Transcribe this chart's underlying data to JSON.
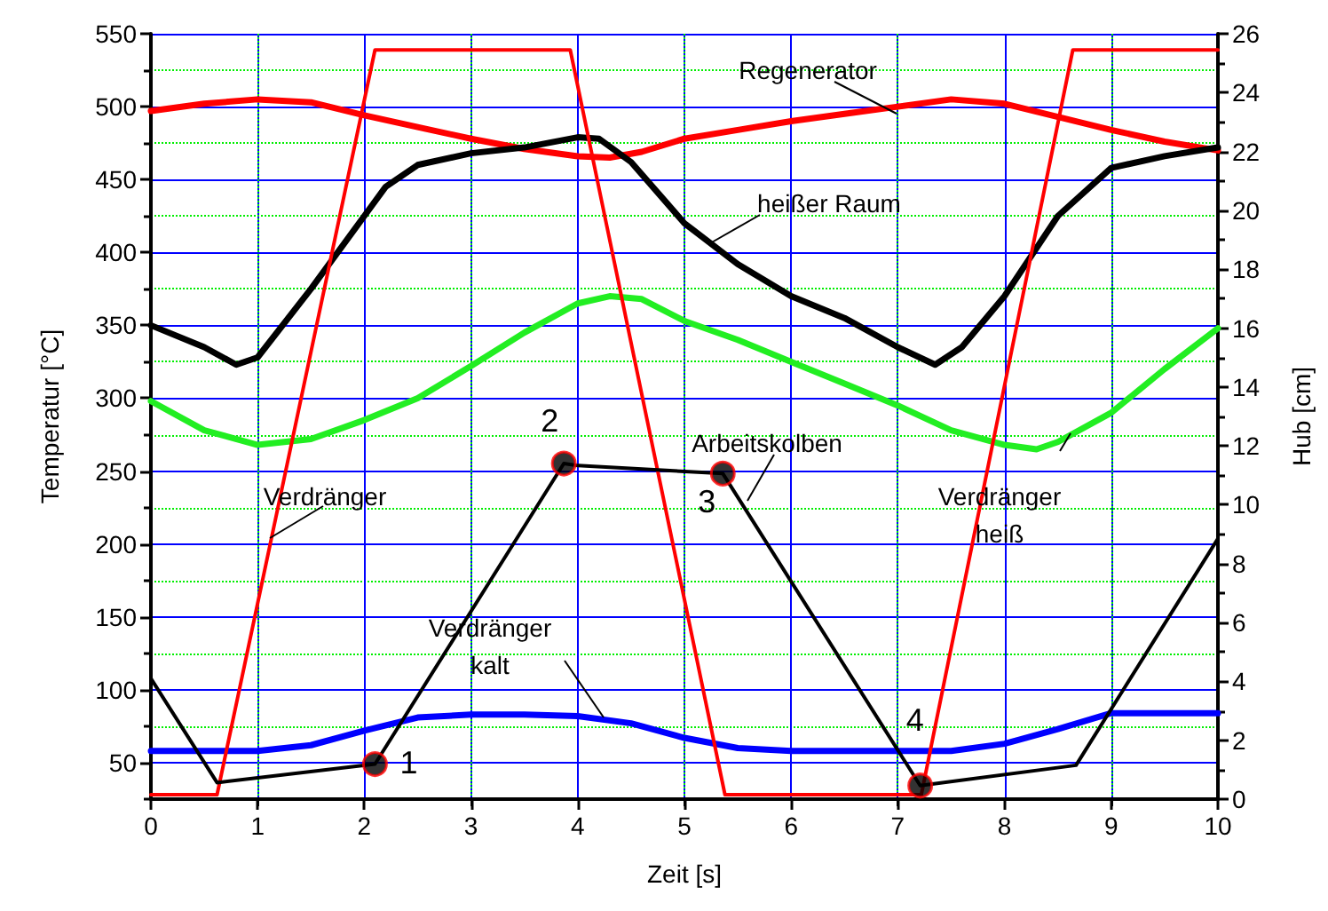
{
  "chart_data": {
    "type": "line",
    "xlabel": "Zeit [s]",
    "ylabel": "Temperatur [°C]",
    "y2label": "Hub [cm]",
    "xlim": [
      0,
      10
    ],
    "xticks": [
      0,
      1,
      2,
      3,
      4,
      5,
      6,
      7,
      8,
      9,
      10
    ],
    "ylim": [
      25,
      550
    ],
    "yticks": [
      50,
      100,
      150,
      200,
      250,
      300,
      350,
      400,
      450,
      500,
      550
    ],
    "y2lim": [
      0,
      26
    ],
    "y2ticks": [
      0,
      2,
      4,
      6,
      8,
      10,
      12,
      14,
      16,
      18,
      20,
      22,
      24,
      26
    ],
    "annotations": [
      "1",
      "2",
      "3",
      "4"
    ],
    "grid": true,
    "legend": false,
    "marker": "none",
    "line_style": "solid",
    "series": [
      {
        "name": "Regenerator",
        "color": "#ff0000",
        "x": [
          0,
          0.5,
          1,
          1.5,
          2,
          2.5,
          3,
          3.5,
          4,
          4.3,
          4.6,
          5,
          5.5,
          6,
          6.5,
          7,
          7.5,
          8,
          8.5,
          9,
          9.5,
          10
        ],
        "values": [
          497,
          502,
          505,
          503,
          494,
          486,
          478,
          471,
          466,
          465,
          469,
          478,
          484,
          490,
          495,
          500,
          505,
          502,
          493,
          484,
          476,
          470
        ]
      },
      {
        "name": "heißer Raum",
        "color": "#000000",
        "x": [
          0,
          0.5,
          0.8,
          1,
          1.5,
          2,
          2.2,
          2.5,
          3,
          3.5,
          4,
          4.2,
          4.5,
          5,
          5.5,
          6,
          6.5,
          7,
          7.35,
          7.6,
          8,
          8.5,
          9,
          9.5,
          10
        ],
        "values": [
          350,
          335,
          323,
          328,
          375,
          425,
          445,
          460,
          468,
          472,
          479,
          478,
          462,
          420,
          392,
          370,
          355,
          335,
          323,
          335,
          370,
          425,
          458,
          466,
          472
        ]
      },
      {
        "name": "Verdränger heiß",
        "color": "#22ee22",
        "x": [
          0,
          0.5,
          1,
          1.5,
          2,
          2.5,
          3,
          3.5,
          4,
          4.3,
          4.6,
          5,
          5.5,
          6,
          6.5,
          7,
          7.5,
          8,
          8.3,
          8.5,
          9,
          9.5,
          10
        ],
        "values": [
          298,
          278,
          268,
          272,
          285,
          300,
          322,
          345,
          365,
          370,
          368,
          353,
          340,
          325,
          310,
          295,
          278,
          268,
          265,
          270,
          290,
          320,
          348
        ]
      },
      {
        "name": "Verdränger kalt",
        "color": "#0000ff",
        "x": [
          0,
          1,
          1.5,
          2,
          2.5,
          3,
          3.5,
          4,
          4.5,
          5,
          5.5,
          6,
          7,
          7.5,
          8,
          8.5,
          9,
          10
        ],
        "values": [
          58,
          58,
          62,
          72,
          81,
          83,
          83,
          82,
          77,
          67,
          60,
          58,
          58,
          58,
          63,
          73,
          84,
          84
        ]
      },
      {
        "name": "Verdränger",
        "color": "#ff0000",
        "axis": "y2",
        "x": [
          0,
          0.62,
          2.1,
          3.93,
          5.38,
          7.22,
          8.64,
          10
        ],
        "values": [
          0.15,
          0.15,
          25.45,
          25.45,
          0.15,
          0.15,
          25.45,
          25.45
        ]
      },
      {
        "name": "Arbeitskolben",
        "color": "#000000",
        "axis": "y2",
        "x": [
          0,
          0.62,
          2.1,
          3.87,
          4.0,
          5.36,
          7.21,
          8.67,
          10
        ],
        "values": [
          4.1,
          0.56,
          1.19,
          11.4,
          11.33,
          11.06,
          0.46,
          1.15,
          8.85
        ]
      },
      {
        "type": "scatter",
        "color": "#000000",
        "axis": "y2",
        "marker": "circle",
        "x": [
          2.1,
          3.87,
          5.36,
          7.21
        ],
        "values": [
          1.19,
          11.4,
          11.06,
          0.46
        ]
      }
    ]
  }
}
